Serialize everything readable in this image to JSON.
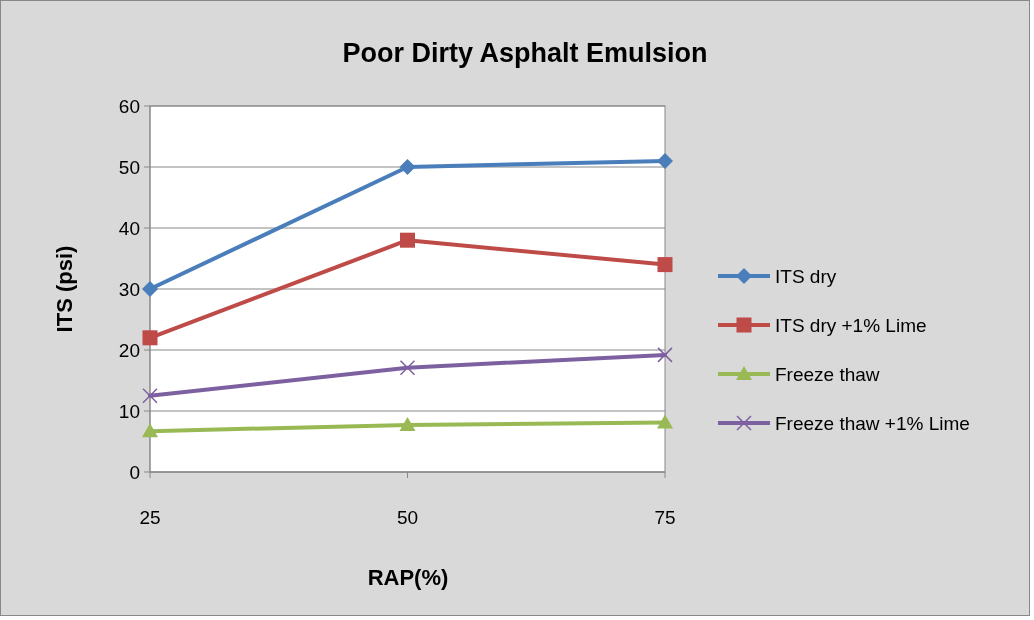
{
  "chart_data": {
    "type": "line",
    "title": "Poor Dirty  Asphalt Emulsion",
    "xlabel": "RAP(%)",
    "ylabel": "ITS (psi)",
    "x": [
      25,
      50,
      75
    ],
    "xlim": [
      25,
      75
    ],
    "xticks": [
      25,
      50,
      75
    ],
    "ylim": [
      0,
      60
    ],
    "yticks": [
      0,
      10,
      20,
      30,
      40,
      50,
      60
    ],
    "grid": "y",
    "legend": "right",
    "series": [
      {
        "name": "ITS dry",
        "color": "#4a7ebb",
        "marker": "diamond",
        "values": [
          30,
          50,
          51
        ]
      },
      {
        "name": "ITS dry +1% Lime",
        "color": "#be4b48",
        "marker": "square",
        "values": [
          22,
          38,
          34
        ]
      },
      {
        "name": "Freeze thaw",
        "color": "#98b954",
        "marker": "triangle",
        "values": [
          6.7,
          7.7,
          8.1
        ]
      },
      {
        "name": "Freeze thaw +1% Lime",
        "color": "#7d60a0",
        "marker": "cross",
        "values": [
          12.5,
          17.1,
          19.2
        ]
      }
    ]
  }
}
